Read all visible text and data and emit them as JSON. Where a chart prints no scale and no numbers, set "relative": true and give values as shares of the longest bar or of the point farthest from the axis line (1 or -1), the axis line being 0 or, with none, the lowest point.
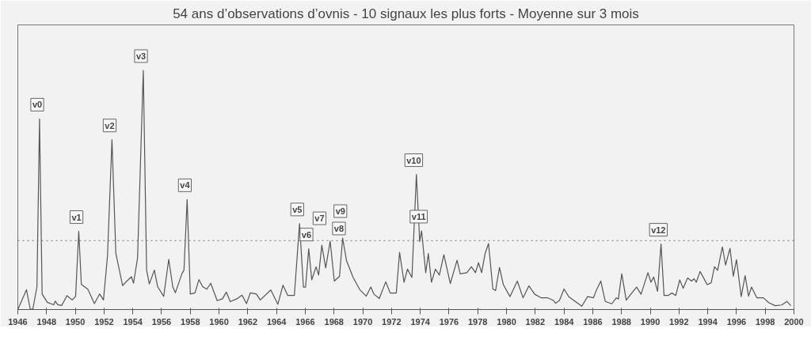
{
  "chart_data": {
    "type": "line",
    "title": "54 ans d’observations d’ovnis - 10 signaux les plus forts - Moyenne sur 3 mois",
    "relative": true,
    "xlim": [
      1946,
      2000
    ],
    "xticks": [
      1946,
      1948,
      1950,
      1952,
      1954,
      1956,
      1958,
      1960,
      1962,
      1964,
      1966,
      1968,
      1970,
      1972,
      1974,
      1976,
      1978,
      1980,
      1982,
      1984,
      1986,
      1988,
      1990,
      1992,
      1994,
      1996,
      1998,
      2000
    ],
    "grid": false,
    "series": [
      {
        "color": "#555555",
        "x": [
          1946.0,
          1946.6,
          1946.87,
          1947.05,
          1947.33,
          1947.51,
          1947.69,
          1948.05,
          1948.5,
          1948.6,
          1948.78,
          1949.05,
          1949.42,
          1949.78,
          1950.02,
          1950.24,
          1950.42,
          1950.87,
          1951.33,
          1951.69,
          1951.96,
          1952.24,
          1952.55,
          1952.82,
          1953.29,
          1953.6,
          1953.91,
          1954.05,
          1954.33,
          1954.73,
          1954.96,
          1955.15,
          1955.5,
          1955.73,
          1956.15,
          1956.5,
          1956.78,
          1956.96,
          1957.42,
          1957.56,
          1957.78,
          1958.0,
          1958.33,
          1958.6,
          1958.87,
          1959.15,
          1959.42,
          1959.87,
          1960.24,
          1960.51,
          1960.78,
          1961.24,
          1961.6,
          1961.91,
          1962.18,
          1962.6,
          1962.87,
          1963.6,
          1964.09,
          1964.45,
          1964.78,
          1965.24,
          1965.6,
          1965.87,
          1966.02,
          1966.24,
          1966.45,
          1966.75,
          1966.93,
          1967.15,
          1967.42,
          1967.73,
          1968.02,
          1968.38,
          1968.6,
          1968.87,
          1969.33,
          1969.78,
          1970.24,
          1970.56,
          1970.78,
          1971.15,
          1971.6,
          1971.91,
          1972.33,
          1972.56,
          1972.87,
          1973.11,
          1973.42,
          1973.73,
          1973.96,
          1974.09,
          1974.38,
          1974.56,
          1974.78,
          1975.05,
          1975.33,
          1975.64,
          1976.09,
          1976.56,
          1976.78,
          1977.24,
          1977.56,
          1977.84,
          1978.05,
          1978.27,
          1978.51,
          1978.75,
          1979.05,
          1979.24,
          1979.51,
          1979.78,
          1980.24,
          1980.75,
          1981.15,
          1981.56,
          1981.96,
          1982.42,
          1982.87,
          1983.24,
          1983.42,
          1983.69,
          1984.0,
          1984.33,
          1984.78,
          1985.24,
          1985.64,
          1986.05,
          1986.24,
          1986.56,
          1986.87,
          1987.33,
          1987.64,
          1987.78,
          1988.02,
          1988.33,
          1988.65,
          1989.05,
          1989.36,
          1989.84,
          1990.05,
          1990.24,
          1990.51,
          1990.75,
          1990.96,
          1991.24,
          1991.51,
          1991.78,
          1992.05,
          1992.29,
          1992.6,
          1992.87,
          1993.05,
          1993.2,
          1993.47,
          1993.96,
          1994.24,
          1994.47,
          1994.69,
          1995.02,
          1995.24,
          1995.55,
          1995.78,
          1996.0,
          1996.33,
          1996.6,
          1996.84,
          1997.05,
          1997.42,
          1997.87,
          1998.24,
          1998.69,
          1999.15,
          1999.51,
          1999.78
        ],
        "values": [
          0,
          0.083,
          0,
          0.003,
          0.095,
          0.797,
          0.065,
          0.03,
          0.02,
          0.035,
          0.02,
          0.017,
          0.058,
          0.04,
          0.055,
          0.327,
          0.105,
          0.085,
          0.025,
          0.065,
          0.04,
          0.225,
          0.71,
          0.235,
          0.1,
          0.12,
          0.137,
          0.11,
          0.215,
          1.0,
          0.165,
          0.107,
          0.165,
          0.095,
          0.055,
          0.21,
          0.095,
          0.07,
          0.15,
          0.165,
          0.46,
          0.065,
          0.07,
          0.125,
          0.095,
          0.085,
          0.11,
          0.037,
          0.045,
          0.073,
          0.033,
          0.045,
          0.06,
          0.025,
          0.07,
          0.065,
          0.04,
          0.082,
          0.022,
          0.102,
          0.059,
          0.059,
          0.359,
          0.094,
          0.094,
          0.254,
          0.124,
          0.179,
          0.144,
          0.269,
          0.174,
          0.286,
          0.119,
          0.139,
          0.299,
          0.204,
          0.134,
          0.084,
          0.056,
          0.094,
          0.064,
          0.046,
          0.116,
          0.069,
          0.069,
          0.239,
          0.114,
          0.169,
          0.134,
          0.565,
          0.284,
          0.329,
          0.154,
          0.234,
          0.114,
          0.169,
          0.144,
          0.229,
          0.109,
          0.206,
          0.149,
          0.154,
          0.179,
          0.154,
          0.196,
          0.154,
          0.234,
          0.276,
          0.086,
          0.079,
          0.176,
          0.104,
          0.054,
          0.119,
          0.049,
          0.099,
          0.064,
          0.049,
          0.049,
          0.039,
          0.026,
          0.039,
          0.086,
          0.054,
          0.034,
          0.014,
          0.054,
          0.049,
          0.079,
          0.119,
          0.034,
          0.024,
          0.049,
          0.044,
          0.149,
          0.039,
          0.064,
          0.094,
          0.064,
          0.154,
          0.114,
          0.136,
          0.076,
          0.274,
          0.059,
          0.059,
          0.069,
          0.059,
          0.124,
          0.089,
          0.132,
          0.119,
          0.129,
          0.114,
          0.159,
          0.104,
          0.112,
          0.179,
          0.164,
          0.262,
          0.186,
          0.256,
          0.139,
          0.209,
          0.054,
          0.142,
          0.056,
          0.094,
          0.049,
          0.049,
          0.029,
          0.016,
          0.019,
          0.034,
          0.016
        ]
      }
    ],
    "ref_lines": [
      {
        "axis": "y",
        "value": 0.288,
        "color": "#777777",
        "line_style": "dotted"
      }
    ],
    "annotations": [
      {
        "text": "v0",
        "x": 1947.51,
        "y": 0.797
      },
      {
        "text": "v1",
        "x": 1950.24,
        "y": 0.327
      },
      {
        "text": "v2",
        "x": 1952.55,
        "y": 0.71
      },
      {
        "text": "v3",
        "x": 1954.73,
        "y": 1.0
      },
      {
        "text": "v4",
        "x": 1957.78,
        "y": 0.46
      },
      {
        "text": "v5",
        "x": 1965.6,
        "y": 0.359
      },
      {
        "text": "v6",
        "x": 1966.24,
        "y": 0.254
      },
      {
        "text": "v7",
        "x": 1967.15,
        "y": 0.269
      },
      {
        "text": "v8",
        "x": 1967.73,
        "y": 0.286
      },
      {
        "text": "v9",
        "x": 1968.6,
        "y": 0.299
      },
      {
        "text": "v10",
        "x": 1973.73,
        "y": 0.565
      },
      {
        "text": "v11",
        "x": 1974.09,
        "y": 0.329
      },
      {
        "text": "v12",
        "x": 1990.75,
        "y": 0.274
      }
    ]
  }
}
